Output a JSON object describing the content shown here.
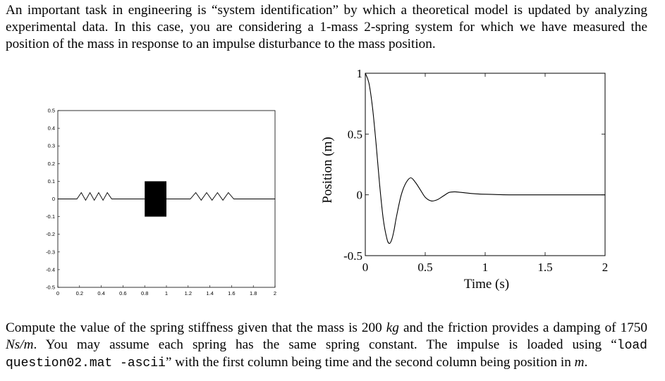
{
  "intro": {
    "p1": "An important task in engineering is “system identification” by which a theoretical model is updated by analyzing experimental data. In this case, you are considering a 1-mass 2-spring system for which we have measured the position of the mass in response to an impulse disturbance to the mass position."
  },
  "question": {
    "t1": "Compute the value of the spring stiffness given that the mass is 200 ",
    "mass_unit": "kg",
    "t2": " and the friction provides a damping of 1750 ",
    "damping_unit": "Ns/m",
    "t3": ". You may assume each spring has the same spring constant. The impulse is loaded using “",
    "code": "load question02.mat -ascii",
    "t4": "” with the first column being time and the second column being position in ",
    "pos_unit": "m",
    "t5": "."
  },
  "colors": {
    "line": "#000000",
    "mass": "#000000"
  },
  "chart_data": [
    {
      "type": "diagram",
      "xlim": [
        0,
        2
      ],
      "ylim": [
        -0.5,
        0.5
      ],
      "xticks": [
        "0",
        "0.2",
        "0.4",
        "0.6",
        "0.8",
        "1",
        "1.2",
        "1.4",
        "1.6",
        "1.8",
        "2"
      ],
      "yticks": [
        "0.5",
        "0.4",
        "0.3",
        "0.2",
        "0.1",
        "0",
        "-0.1",
        "-0.2",
        "-0.3",
        "-0.4",
        "-0.5"
      ],
      "mass_block": {
        "x": [
          0.8,
          1.0
        ],
        "y": [
          -0.1,
          0.1
        ]
      },
      "springs": [
        {
          "x": [
            0.0,
            0.8
          ]
        },
        {
          "x": [
            1.0,
            2.0
          ]
        }
      ]
    },
    {
      "type": "line",
      "xlabel": "Time (s)",
      "ylabel": "Position (m)",
      "xlim": [
        0,
        2
      ],
      "ylim": [
        -0.5,
        1
      ],
      "xticks": [
        "0",
        "0.5",
        "1",
        "1.5",
        "2"
      ],
      "yticks": [
        "1",
        "0.5",
        "0",
        "-0.5"
      ],
      "series": [
        {
          "x": [
            0,
            0.03,
            0.06,
            0.09,
            0.12,
            0.15,
            0.18,
            0.2,
            0.22,
            0.24,
            0.26,
            0.3,
            0.34,
            0.38,
            0.42,
            0.46,
            0.5,
            0.55,
            0.6,
            0.65,
            0.7,
            0.75,
            0.8,
            0.9,
            1.0,
            1.1,
            1.2,
            1.4,
            1.6,
            1.8,
            2.0
          ],
          "y": [
            1.0,
            0.92,
            0.72,
            0.42,
            0.08,
            -0.2,
            -0.36,
            -0.4,
            -0.37,
            -0.29,
            -0.18,
            0.0,
            0.1,
            0.14,
            0.1,
            0.04,
            -0.02,
            -0.05,
            -0.04,
            -0.01,
            0.02,
            0.025,
            0.02,
            0.01,
            0.005,
            0.002,
            0.0,
            0.0,
            0.0,
            0.0,
            0.0
          ]
        }
      ]
    }
  ]
}
